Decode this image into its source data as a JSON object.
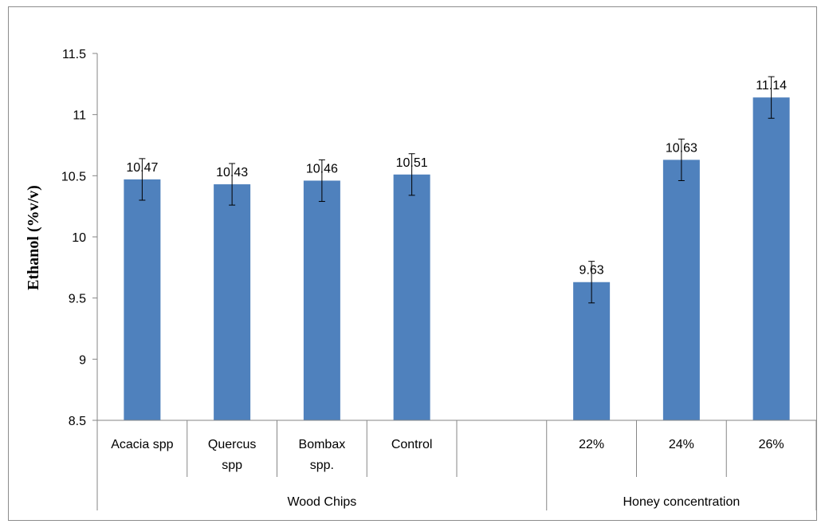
{
  "chart_data": {
    "type": "bar",
    "title": "",
    "ylabel": "Ethanol (%v/v)",
    "xlabel": "",
    "ylim": [
      8.5,
      11.5
    ],
    "yticks": [
      "8.5",
      "9",
      "9.5",
      "10",
      "10.5",
      "11",
      "11.5"
    ],
    "grid": false,
    "legend": "none",
    "bar_color": "#4f81bd",
    "categories": [
      {
        "label": [
          "Acacia spp"
        ],
        "value": 10.47,
        "data_label": "10.47",
        "error": 0.17
      },
      {
        "label": [
          "Quercus",
          "spp"
        ],
        "value": 10.43,
        "data_label": "10.43",
        "error": 0.17
      },
      {
        "label": [
          "Bombax",
          "spp."
        ],
        "value": 10.46,
        "data_label": "10.46",
        "error": 0.17
      },
      {
        "label": [
          "Control"
        ],
        "value": 10.51,
        "data_label": "10.51",
        "error": 0.17
      },
      {
        "label": [
          ""
        ],
        "value": null,
        "data_label": "",
        "error": null
      },
      {
        "label": [
          "22%"
        ],
        "value": 9.63,
        "data_label": "9.63",
        "error": 0.17
      },
      {
        "label": [
          "24%"
        ],
        "value": 10.63,
        "data_label": "10.63",
        "error": 0.17
      },
      {
        "label": [
          "26%"
        ],
        "value": 11.14,
        "data_label": "11.14",
        "error": 0.17
      }
    ],
    "groups": [
      {
        "label": "Wood Chips",
        "start": 0,
        "end": 5
      },
      {
        "label": "Honey concentration",
        "start": 5,
        "end": 8
      }
    ]
  }
}
